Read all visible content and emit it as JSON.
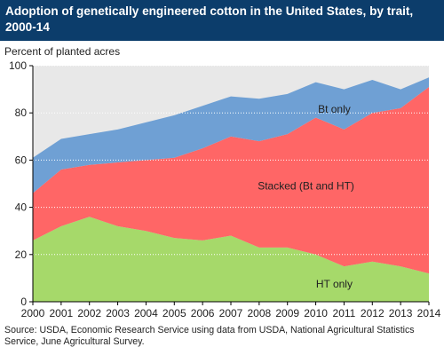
{
  "header": {
    "title_line1": "Adoption of genetically engineered cotton in the United States, by trait,",
    "title_line2": "2000-14"
  },
  "source": {
    "line1": "Source: USDA, Economic Research Service using data from USDA, National Agricultural Statistics",
    "line2": "Service, June Agricultural Survey."
  },
  "chart_data": {
    "type": "area",
    "title": "Adoption of genetically engineered cotton in the United States, by trait, 2000-14",
    "ylabel": "Percent of planted acres",
    "xlabel": "",
    "x": [
      2000,
      2001,
      2002,
      2003,
      2004,
      2005,
      2006,
      2007,
      2008,
      2009,
      2010,
      2011,
      2012,
      2013,
      2014
    ],
    "ylim": [
      0,
      100
    ],
    "yticks": [
      0,
      20,
      40,
      60,
      80,
      100
    ],
    "grid": true,
    "stacked": true,
    "series": [
      {
        "name": "HT only",
        "color": "#a6d96a",
        "values": [
          26,
          32,
          36,
          32,
          30,
          27,
          26,
          28,
          23,
          23,
          20,
          15,
          17,
          15,
          12
        ]
      },
      {
        "name": "Stacked (Bt and HT)",
        "color": "#ff6666",
        "values": [
          20,
          24,
          22,
          27,
          30,
          34,
          39,
          42,
          45,
          48,
          58,
          58,
          63,
          67,
          79
        ]
      },
      {
        "name": "Bt only",
        "color": "#6fa0d4",
        "values": [
          15,
          13,
          13,
          14,
          16,
          18,
          18,
          17,
          18,
          17,
          15,
          17,
          14,
          8,
          4
        ]
      }
    ],
    "background_color": "#e8e8e8"
  }
}
